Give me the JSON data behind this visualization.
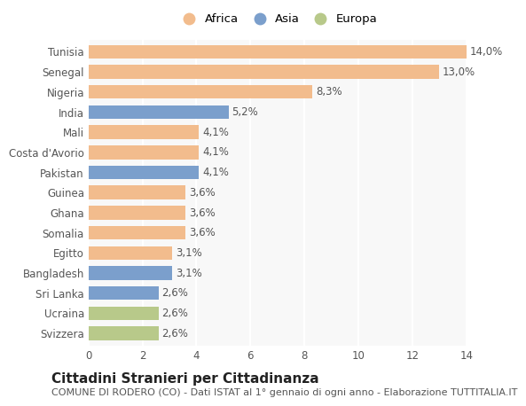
{
  "countries": [
    "Tunisia",
    "Senegal",
    "Nigeria",
    "India",
    "Mali",
    "Costa d'Avorio",
    "Pakistan",
    "Guinea",
    "Ghana",
    "Somalia",
    "Egitto",
    "Bangladesh",
    "Sri Lanka",
    "Ucraina",
    "Svizzera"
  ],
  "values": [
    14.0,
    13.0,
    8.3,
    5.2,
    4.1,
    4.1,
    4.1,
    3.6,
    3.6,
    3.6,
    3.1,
    3.1,
    2.6,
    2.6,
    2.6
  ],
  "continents": [
    "Africa",
    "Africa",
    "Africa",
    "Asia",
    "Africa",
    "Africa",
    "Asia",
    "Africa",
    "Africa",
    "Africa",
    "Africa",
    "Asia",
    "Asia",
    "Europa",
    "Europa"
  ],
  "colors": {
    "Africa": "#F2BC8D",
    "Asia": "#7B9FCC",
    "Europa": "#B8C98A"
  },
  "legend_labels": [
    "Africa",
    "Asia",
    "Europa"
  ],
  "xlim": [
    0,
    14
  ],
  "xticks": [
    0,
    2,
    4,
    6,
    8,
    10,
    12,
    14
  ],
  "title": "Cittadini Stranieri per Cittadinanza",
  "subtitle": "COMUNE DI RODERO (CO) - Dati ISTAT al 1° gennaio di ogni anno - Elaborazione TUTTITALIA.IT",
  "bg_color": "#FFFFFF",
  "plot_bg_color": "#F8F8F8",
  "grid_color": "#FFFFFF",
  "label_fontsize": 8.5,
  "value_fontsize": 8.5,
  "title_fontsize": 11,
  "subtitle_fontsize": 8,
  "legend_fontsize": 9.5,
  "bar_height": 0.68
}
